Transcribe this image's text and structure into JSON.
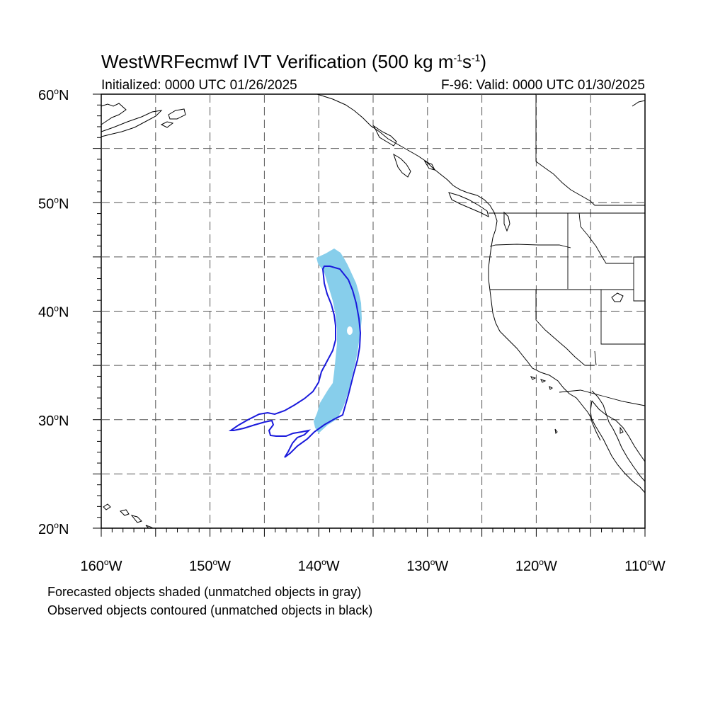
{
  "title": {
    "main": "WestWRFecmwf IVT Verification (500 kg m",
    "sup1": "-1",
    "mid": "s",
    "sup2": "-1",
    "end": ")"
  },
  "initialized": "Initialized: 0000 UTC 01/26/2025",
  "valid": "F-96: Valid: 0000 UTC 01/30/2025",
  "map": {
    "lon_range": [
      -160,
      -110
    ],
    "lat_range": [
      20,
      60
    ],
    "lat_labels": [
      {
        "text": "60",
        "suffix": "N",
        "lat": 60
      },
      {
        "text": "50",
        "suffix": "N",
        "lat": 50
      },
      {
        "text": "40",
        "suffix": "N",
        "lat": 40
      },
      {
        "text": "30",
        "suffix": "N",
        "lat": 30
      },
      {
        "text": "20",
        "suffix": "N",
        "lat": 20
      }
    ],
    "lon_labels": [
      {
        "text": "160",
        "suffix": "W",
        "lon": -160
      },
      {
        "text": "150",
        "suffix": "W",
        "lon": -150
      },
      {
        "text": "140",
        "suffix": "W",
        "lon": -140
      },
      {
        "text": "130",
        "suffix": "W",
        "lon": -130
      },
      {
        "text": "120",
        "suffix": "W",
        "lon": -120
      },
      {
        "text": "110",
        "suffix": "W",
        "lon": -110
      }
    ],
    "forecast_shade_color": "#87ceeb",
    "observed_contour_color": "#1a1adc",
    "grid_color": "#555555",
    "coastline_color": "#000000"
  },
  "legend": {
    "line1": "Forecasted objects shaded (unmatched objects in gray)",
    "line2": "Observed objects contoured (unmatched objects in black)"
  }
}
